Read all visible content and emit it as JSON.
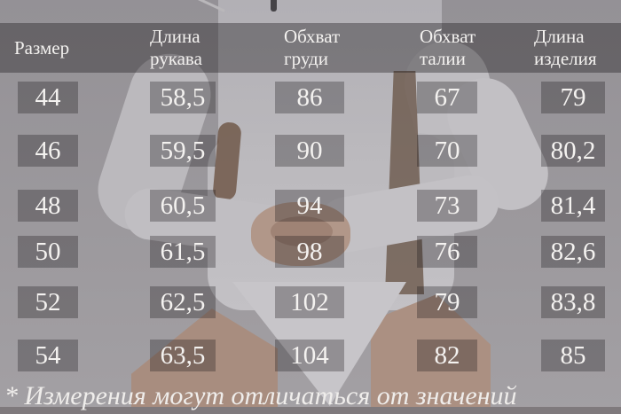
{
  "chart_data": {
    "type": "table",
    "columns": [
      "Размер",
      "Длина рукава",
      "Обхват груди",
      "Обхват талии",
      "Длина изделия"
    ],
    "rows": [
      [
        "44",
        "58,5",
        "86",
        "67",
        "79"
      ],
      [
        "46",
        "59,5",
        "90",
        "70",
        "80,2"
      ],
      [
        "48",
        "60,5",
        "94",
        "73",
        "81,4"
      ],
      [
        "50",
        "61,5",
        "98",
        "76",
        "82,6"
      ],
      [
        "52",
        "62,5",
        "102",
        "79",
        "83,8"
      ],
      [
        "54",
        "63,5",
        "104",
        "82",
        "85"
      ]
    ],
    "footnote": "* Измерения могут отличаться от значений",
    "layout_hint": "size chart overlaid on photo of model in white bodysuit; header band and cells are translucent dark grey with white serif text"
  },
  "colors": {
    "header_overlay": "rgba(30,27,30,0.38)",
    "cell_overlay": "rgba(22,19,22,0.30)",
    "text": "#f4f2f0",
    "photo_base_grey": "#9c999d",
    "bodysuit_white": "#c3c1c5",
    "skin_tone": "#ab9082",
    "hair_brown": "#5f4a3b"
  }
}
